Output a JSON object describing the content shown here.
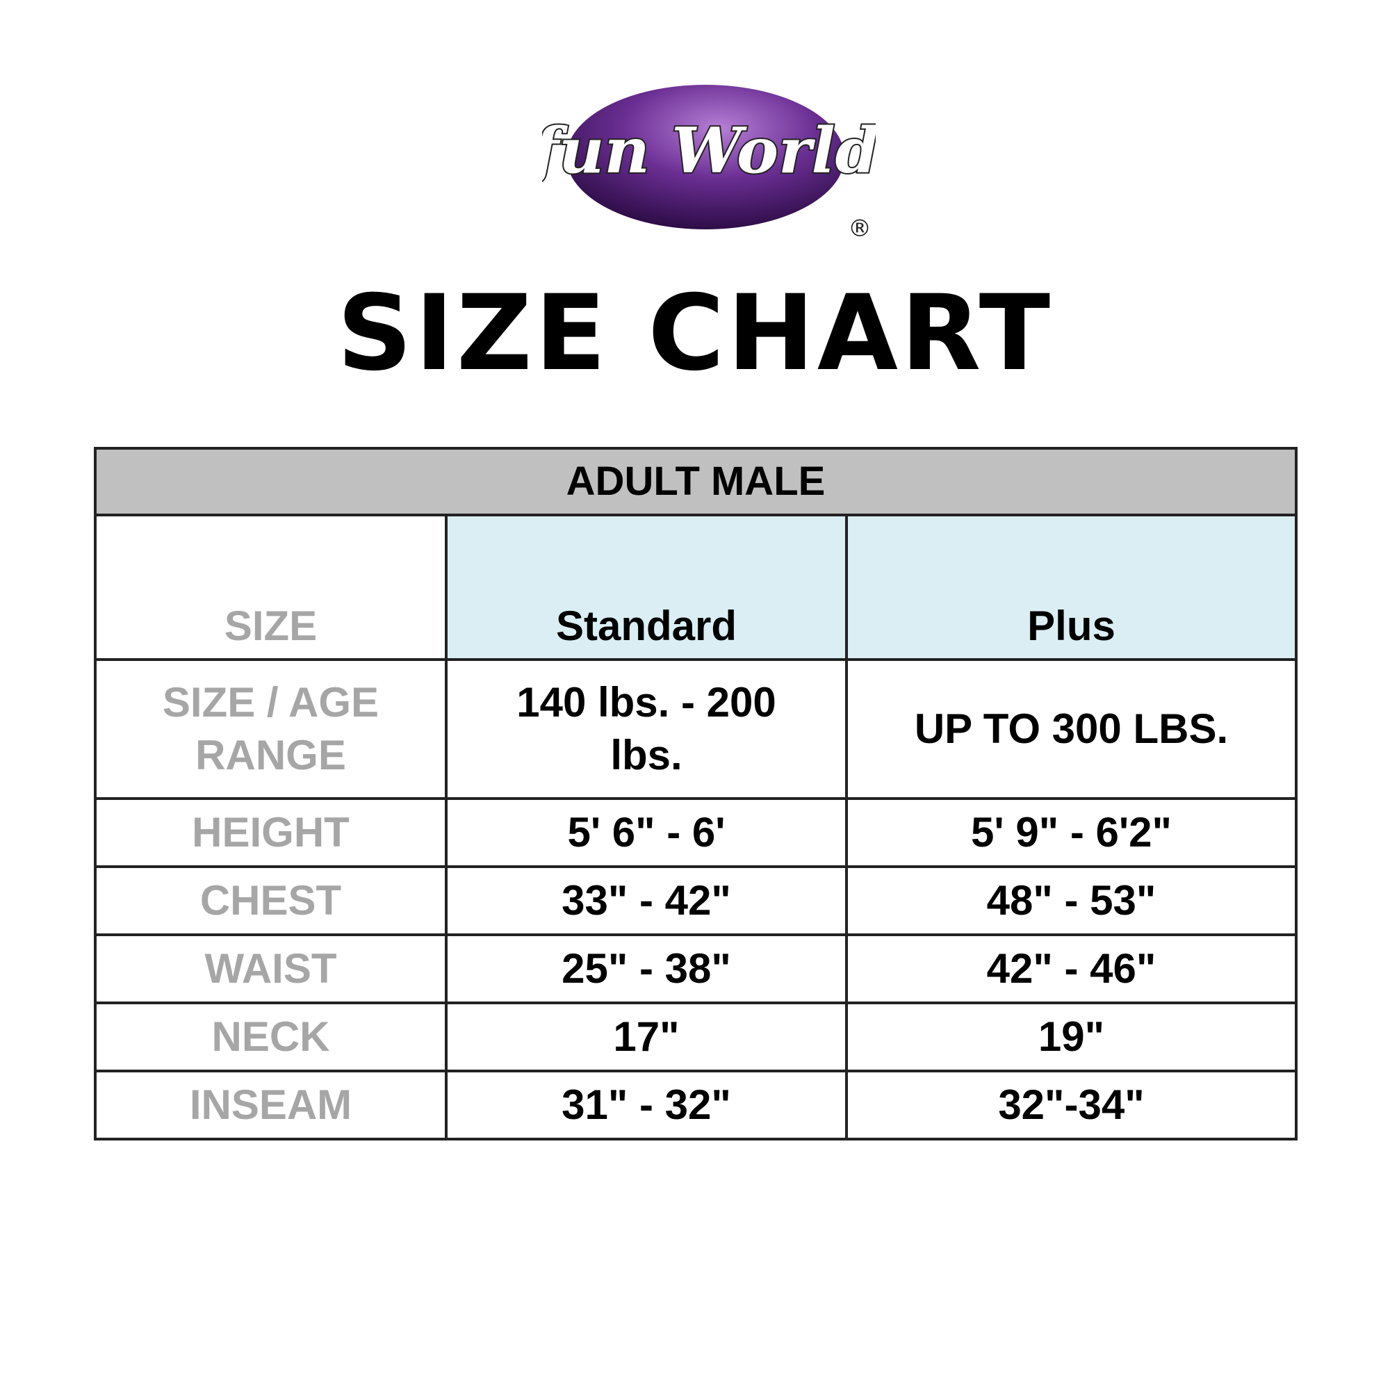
{
  "logo": {
    "text": "fun World",
    "registered": "®",
    "colors": {
      "oval": "#5a2a82",
      "text": "#ffffff"
    }
  },
  "title": "SIZE CHART",
  "table": {
    "group_header": "ADULT MALE",
    "columns": [
      "SIZE",
      "Standard",
      "Plus"
    ],
    "header_fill": "#daeef3",
    "rows": [
      {
        "label": "SIZE / AGE RANGE",
        "standard": "140 lbs. - 200 lbs.",
        "plus": "UP TO 300 LBS."
      },
      {
        "label": "HEIGHT",
        "standard": "5' 6\" - 6'",
        "plus": "5' 9\" - 6'2\""
      },
      {
        "label": "CHEST",
        "standard": "33\" - 42\"",
        "plus": "48\" - 53\""
      },
      {
        "label": "WAIST",
        "standard": "25\" - 38\"",
        "plus": "42\" - 46\""
      },
      {
        "label": "NECK",
        "standard": "17\"",
        "plus": "19\""
      },
      {
        "label": "INSEAM",
        "standard": "31\" - 32\"",
        "plus": "32\"-34\""
      }
    ]
  }
}
